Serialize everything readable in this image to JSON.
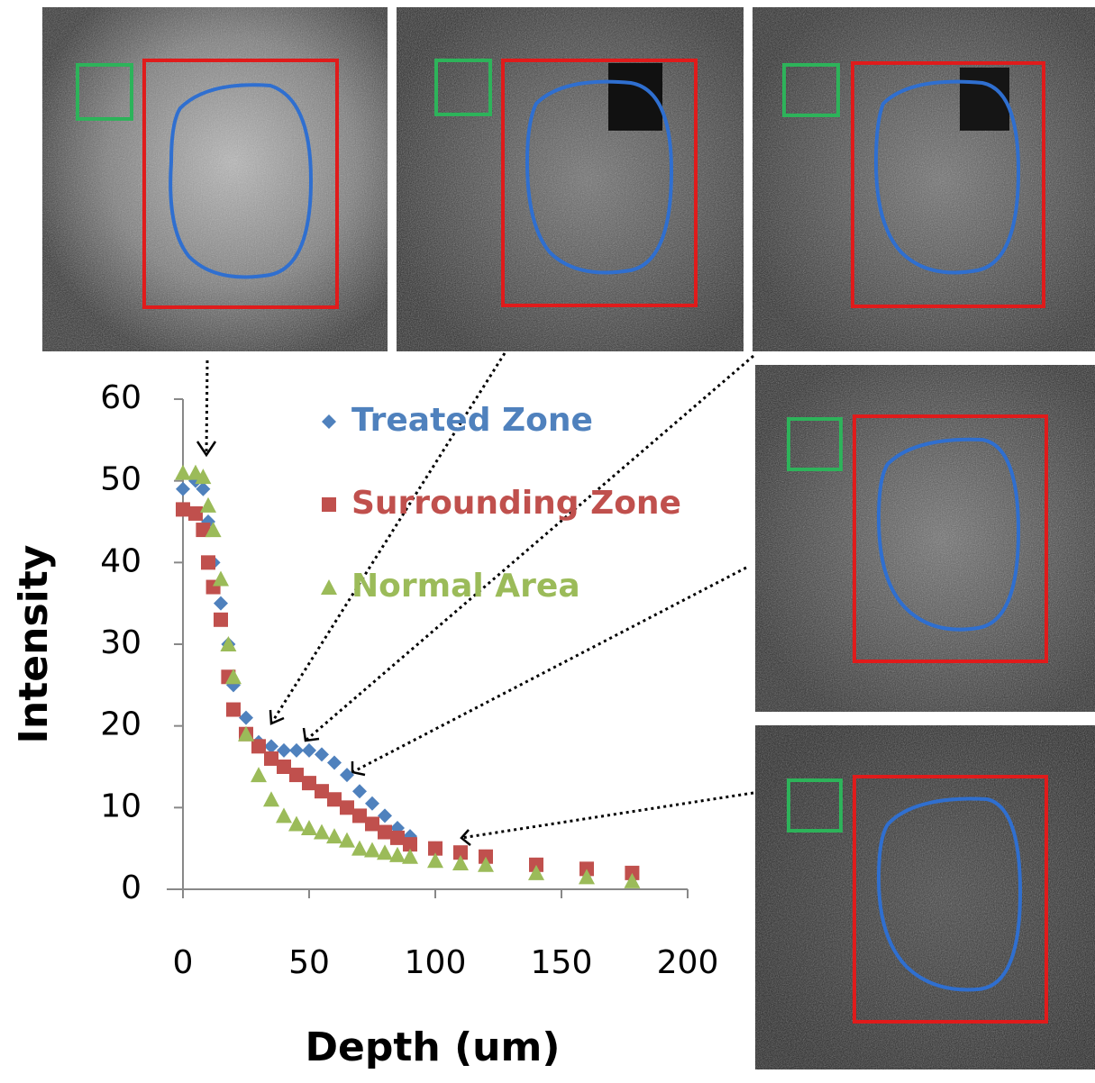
{
  "chart_data": {
    "type": "scatter",
    "x_label": "Depth (um)",
    "y_label": "Intensity",
    "xlim": [
      0,
      200
    ],
    "xticks": [
      0,
      50,
      100,
      150,
      200
    ],
    "ylim": [
      0,
      60
    ],
    "yticks": [
      0,
      10,
      20,
      30,
      40,
      50,
      60
    ],
    "x": [
      0,
      5,
      8,
      10,
      12,
      15,
      18,
      20,
      25,
      30,
      35,
      40,
      45,
      50,
      55,
      60,
      65,
      70,
      75,
      80,
      85,
      90,
      100,
      110,
      120,
      140,
      160,
      178
    ],
    "series": [
      {
        "name": "Treated Zone",
        "color": "#4f81bd",
        "marker": "diamond",
        "values": [
          49,
          50,
          49,
          45,
          40,
          35,
          30,
          25,
          21,
          18,
          17.5,
          17,
          17,
          17,
          16.5,
          15.5,
          14,
          12,
          10.5,
          9,
          7.5,
          6.5,
          5,
          4.5,
          4,
          3,
          2,
          1.5
        ]
      },
      {
        "name": "Surrounding Zone",
        "color": "#c0504d",
        "marker": "square",
        "values": [
          46.5,
          46,
          44,
          40,
          37,
          33,
          26,
          22,
          19,
          17.5,
          16,
          15,
          14,
          13,
          12,
          11,
          10,
          9,
          8,
          7,
          6.3,
          5.5,
          5,
          4.5,
          4,
          3,
          2.5,
          2
        ]
      },
      {
        "name": "Normal Area",
        "color": "#9bbb59",
        "marker": "triangle",
        "values": [
          51,
          51,
          50.5,
          47,
          44,
          38,
          30,
          26,
          19,
          14,
          11,
          9,
          8,
          7.5,
          7,
          6.5,
          6,
          5,
          4.8,
          4.5,
          4.2,
          4,
          3.5,
          3.2,
          3,
          2,
          1.5,
          1
        ]
      }
    ]
  }
}
